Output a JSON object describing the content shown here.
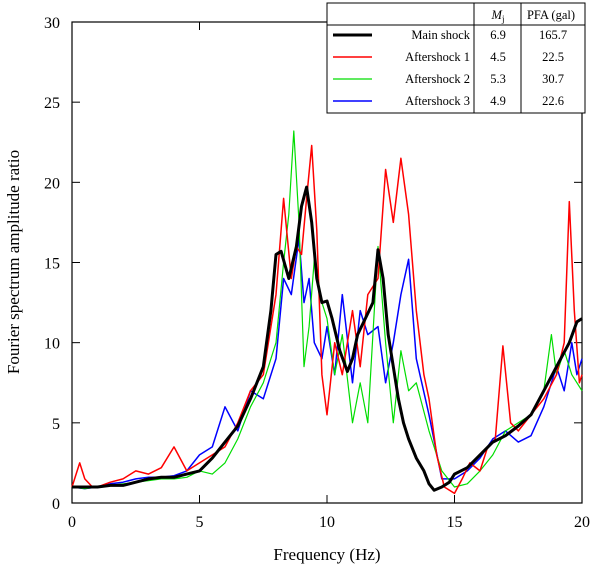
{
  "chart_data": {
    "type": "line",
    "xlabel": "Frequency (Hz)",
    "ylabel": "Fourier spectrum amplitude ratio",
    "xlim": [
      0,
      20
    ],
    "ylim": [
      0,
      30
    ],
    "xticks": [
      0,
      5,
      10,
      15,
      20
    ],
    "yticks": [
      0,
      5,
      10,
      15,
      20,
      25,
      30
    ],
    "grid": false,
    "legend_position": "top-right",
    "legend_headers": [
      "",
      "M_j",
      "PFA (gal)"
    ],
    "legend_header_mj_main": "M",
    "legend_header_mj_sub": "j",
    "legend_header_pfa": "PFA (gal)",
    "series": [
      {
        "name": "Main shock",
        "mj": "6.9",
        "pfa": "165.7",
        "color": "#000000",
        "width": 3,
        "x": [
          0,
          0.5,
          1,
          1.5,
          2,
          2.5,
          3,
          3.5,
          4,
          4.5,
          5,
          5.5,
          6,
          6.5,
          7,
          7.5,
          7.8,
          8,
          8.2,
          8.5,
          8.8,
          9,
          9.2,
          9.4,
          9.6,
          9.8,
          10,
          10.2,
          10.5,
          10.8,
          11,
          11.2,
          11.5,
          11.8,
          12,
          12.2,
          12.4,
          12.6,
          12.8,
          13,
          13.2,
          13.5,
          13.8,
          14,
          14.2,
          14.5,
          14.8,
          15,
          15.5,
          16,
          16.5,
          17,
          17.5,
          18,
          18.5,
          19,
          19.5,
          19.8,
          20
        ],
        "y": [
          1,
          1,
          1,
          1.1,
          1.1,
          1.3,
          1.5,
          1.6,
          1.6,
          1.8,
          2,
          2.8,
          3.8,
          4.8,
          6.5,
          8.5,
          12,
          15.5,
          15.7,
          14,
          16,
          18.5,
          19.7,
          17.5,
          14,
          12.5,
          12.6,
          11.5,
          9.5,
          8.2,
          9,
          10.5,
          11.5,
          12.5,
          15.8,
          14,
          10.5,
          8.5,
          6.5,
          5,
          4,
          2.8,
          2,
          1.2,
          0.8,
          1,
          1.3,
          1.8,
          2.2,
          3,
          3.8,
          4.2,
          4.8,
          5.5,
          7,
          8.5,
          10,
          11.3,
          11.5
        ]
      },
      {
        "name": "Aftershock 1",
        "mj": "4.5",
        "pfa": "22.5",
        "color": "#ff0000",
        "width": 1.5,
        "x": [
          0,
          0.3,
          0.5,
          0.8,
          1,
          1.5,
          2,
          2.5,
          3,
          3.5,
          4,
          4.5,
          5,
          5.5,
          6,
          6.5,
          7,
          7.5,
          8,
          8.3,
          8.6,
          8.8,
          9,
          9.2,
          9.4,
          9.6,
          9.8,
          10,
          10.3,
          10.6,
          11,
          11.3,
          11.6,
          12,
          12.3,
          12.6,
          12.9,
          13.2,
          13.5,
          13.8,
          14,
          14.3,
          14.6,
          15,
          15.3,
          15.6,
          16,
          16.3,
          16.6,
          16.9,
          17.2,
          17.5,
          18,
          18.5,
          19,
          19.3,
          19.5,
          19.7,
          19.9,
          20
        ],
        "y": [
          1,
          2.5,
          1.5,
          1,
          1,
          1.3,
          1.5,
          2,
          1.8,
          2.2,
          3.5,
          2,
          2.5,
          3,
          3.5,
          5,
          7,
          8,
          13,
          19,
          14,
          16,
          15.5,
          19,
          22.3,
          17,
          8,
          5.5,
          10,
          8,
          12,
          8.5,
          13,
          14,
          20.8,
          17.5,
          21.5,
          18,
          12,
          8,
          6.5,
          3,
          1,
          0.6,
          1.5,
          2.5,
          2,
          3.5,
          4,
          9.8,
          5,
          4.5,
          5.5,
          6.5,
          8,
          10,
          18.8,
          12,
          7.5,
          8
        ]
      },
      {
        "name": "Aftershock 2",
        "mj": "5.3",
        "pfa": "30.7",
        "color": "#00dd00",
        "width": 1.2,
        "x": [
          0,
          0.5,
          1,
          1.5,
          2,
          2.5,
          3,
          3.5,
          4,
          4.5,
          5,
          5.5,
          6,
          6.5,
          7,
          7.5,
          8,
          8.3,
          8.5,
          8.7,
          8.9,
          9.1,
          9.3,
          9.5,
          9.7,
          10,
          10.3,
          10.6,
          11,
          11.3,
          11.6,
          12,
          12.3,
          12.6,
          12.9,
          13.2,
          13.5,
          14,
          14.5,
          15,
          15.5,
          16,
          16.5,
          17,
          17.5,
          18,
          18.5,
          18.8,
          19,
          19.3,
          19.6,
          20
        ],
        "y": [
          1,
          0.9,
          1,
          1.1,
          1.2,
          1.3,
          1.4,
          1.5,
          1.5,
          1.6,
          2,
          1.8,
          2.5,
          4,
          6,
          7.5,
          10,
          15,
          18,
          23.2,
          17.5,
          8.5,
          11,
          15.2,
          13,
          11.5,
          8,
          10.5,
          5,
          7.5,
          5,
          16,
          10,
          5,
          9.5,
          7,
          7.5,
          4.5,
          2,
          1,
          1.2,
          2,
          3,
          4.5,
          5,
          5.5,
          7,
          10.5,
          8,
          9.5,
          8,
          7
        ]
      },
      {
        "name": "Aftershock 3",
        "mj": "4.9",
        "pfa": "22.6",
        "color": "#0000ff",
        "width": 1.5,
        "x": [
          0,
          0.5,
          1,
          1.5,
          2,
          2.5,
          3,
          3.5,
          4,
          4.5,
          5,
          5.5,
          6,
          6.5,
          7,
          7.5,
          8,
          8.3,
          8.6,
          8.9,
          9.1,
          9.3,
          9.5,
          9.8,
          10,
          10.3,
          10.6,
          11,
          11.3,
          11.6,
          12,
          12.3,
          12.6,
          12.9,
          13.2,
          13.5,
          14,
          14.5,
          15,
          15.5,
          16,
          16.5,
          17,
          17.5,
          18,
          18.5,
          19,
          19.3,
          19.6,
          19.8,
          20
        ],
        "y": [
          1,
          0.9,
          1,
          1.2,
          1.3,
          1.5,
          1.6,
          1.6,
          1.7,
          2,
          3,
          3.5,
          6,
          4.5,
          7,
          6.5,
          9,
          14,
          13,
          16.5,
          12.5,
          14,
          10,
          9,
          11,
          8,
          13,
          7.5,
          12,
          10.5,
          11,
          7.5,
          10,
          13,
          15.2,
          9,
          5.5,
          1.5,
          1.5,
          2,
          2.8,
          4,
          4.5,
          3.8,
          4.2,
          6,
          8.5,
          7,
          10,
          8,
          9
        ]
      }
    ]
  }
}
